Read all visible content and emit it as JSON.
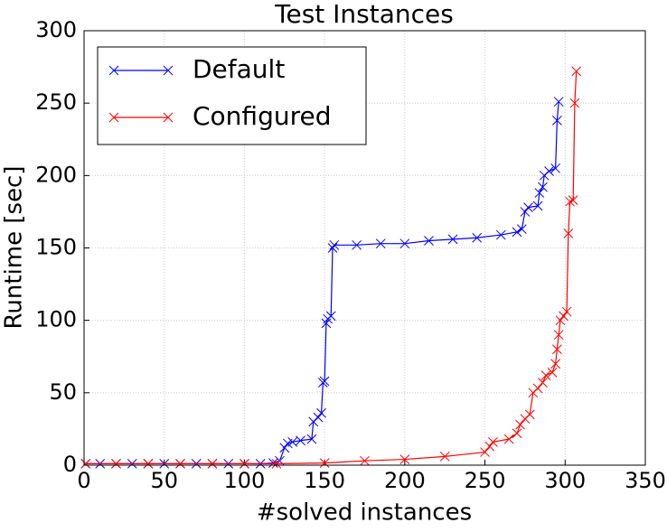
{
  "chart_data": {
    "type": "line",
    "title": "Test Instances",
    "x_label": "#solved instances",
    "y_label": "Runtime [sec]",
    "xlim": [
      0,
      350
    ],
    "xticks": [
      0,
      50,
      100,
      150,
      200,
      250,
      300,
      350
    ],
    "ylim": [
      0,
      300
    ],
    "yticks": [
      0,
      50,
      100,
      150,
      200,
      250,
      300
    ],
    "grid": true,
    "legend": "upper left",
    "series": [
      {
        "name": "Default",
        "color": "#0000ff",
        "x": [
          1,
          10,
          20,
          30,
          40,
          50,
          60,
          70,
          80,
          90,
          100,
          110,
          118,
          122,
          125,
          127,
          130,
          135,
          142,
          143,
          146,
          148,
          149,
          150,
          151,
          152,
          154,
          155,
          156,
          170,
          185,
          200,
          215,
          230,
          245,
          260,
          270,
          273,
          275,
          277,
          283,
          284,
          286,
          287,
          290,
          294,
          295,
          296
        ],
        "values": [
          1,
          1,
          1,
          1,
          1,
          1,
          1,
          1,
          1,
          1,
          1,
          1,
          1.5,
          3,
          12,
          15,
          16,
          17,
          18,
          30,
          33,
          36,
          57,
          58,
          98,
          101,
          103,
          150,
          152,
          152,
          153,
          153,
          155,
          156,
          157,
          159,
          161,
          163,
          175,
          178,
          179,
          188,
          192,
          200,
          203,
          205,
          238,
          251
        ]
      },
      {
        "name": "Configured",
        "color": "#ff0000",
        "x": [
          1,
          20,
          40,
          60,
          80,
          100,
          120,
          150,
          175,
          200,
          225,
          250,
          253,
          255,
          265,
          270,
          272,
          275,
          278,
          280,
          283,
          286,
          288,
          292,
          294,
          295,
          296,
          297,
          299,
          301,
          302,
          303,
          305,
          306,
          307
        ],
        "values": [
          1,
          1,
          1,
          1,
          1,
          1,
          1,
          1.5,
          3,
          4,
          6,
          9,
          13,
          16,
          18,
          22,
          28,
          32,
          35,
          50,
          53,
          57,
          62,
          64,
          70,
          80,
          90,
          100,
          103,
          106,
          160,
          182,
          183,
          250,
          272
        ]
      }
    ]
  }
}
